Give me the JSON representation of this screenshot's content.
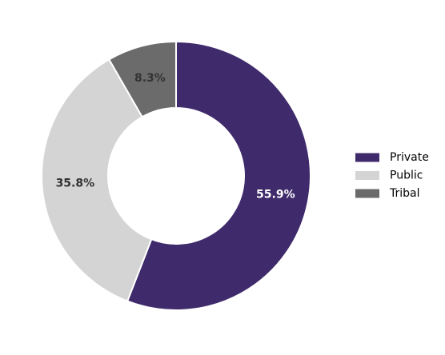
{
  "chart_data": {
    "type": "pie",
    "variant": "donut",
    "title": "",
    "categories": [
      "Private",
      "Public",
      "Tribal"
    ],
    "values": [
      55.9,
      35.8,
      8.3
    ],
    "value_labels": [
      "55.9%",
      "35.8%",
      "8.3%"
    ],
    "colors": [
      "#3f2b6b",
      "#d4d4d4",
      "#6b6b6b"
    ],
    "label_colors": [
      "#ffffff",
      "#333333",
      "#333333"
    ],
    "start": "top",
    "direction": "clockwise",
    "legend": {
      "placement": "right",
      "entries": [
        "Private",
        "Public",
        "Tribal"
      ]
    }
  }
}
